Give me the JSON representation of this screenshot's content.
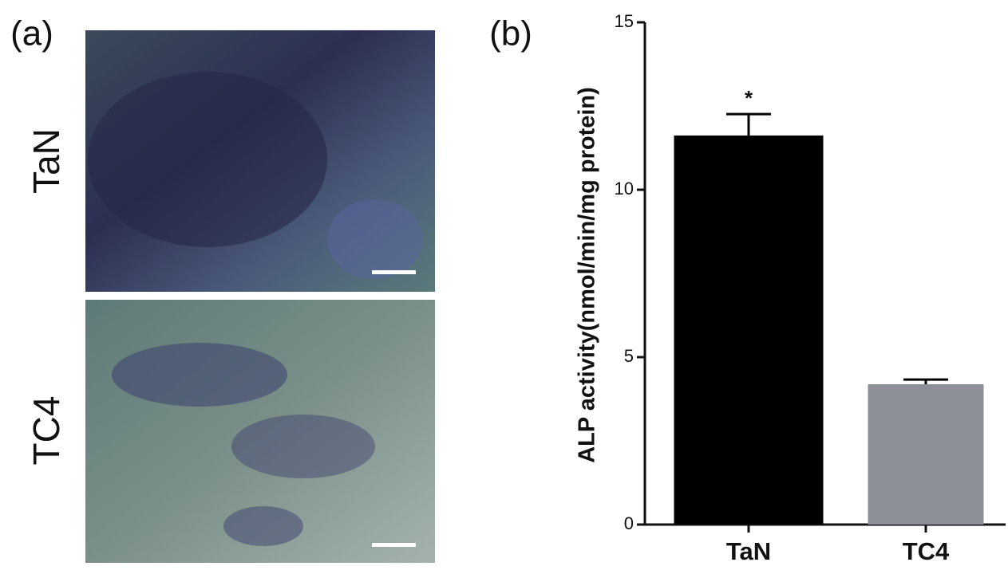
{
  "figure": {
    "panel_a": "(a)",
    "panel_b": "(b)",
    "image_labels": [
      "TaN",
      "TC4"
    ]
  },
  "chart_data": {
    "type": "bar",
    "y_label": "ALP activity(nmol/min/mg protein)",
    "categories": [
      "TaN",
      "TC4"
    ],
    "values": [
      11.62,
      4.19
    ],
    "errors": [
      0.64,
      0.14
    ],
    "colors": [
      "#000000",
      "#8e9099"
    ],
    "significance": [
      "*",
      null
    ],
    "ylim": [
      0,
      15
    ],
    "yticks": [
      0,
      5,
      10,
      15
    ],
    "grid": false
  }
}
